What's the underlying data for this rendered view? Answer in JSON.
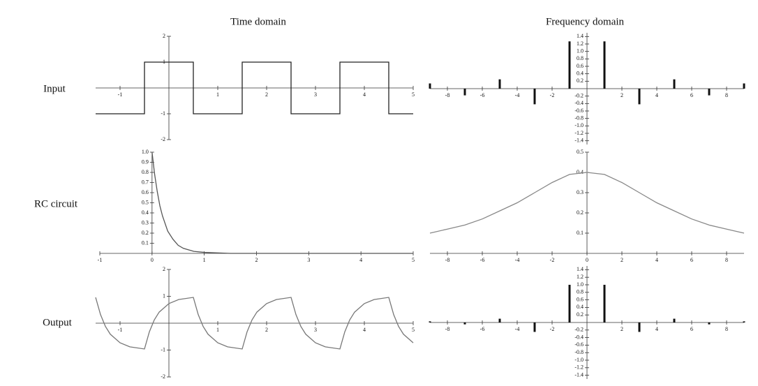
{
  "column_titles": [
    "Time domain",
    "Frequency domain"
  ],
  "row_labels": [
    "Input",
    "RC circuit",
    "Output"
  ],
  "chart_data": [
    {
      "type": "line",
      "color": "#222222",
      "x": [
        -1.5,
        -0.5,
        -0.5,
        0.5,
        0.5,
        1.5,
        1.5,
        2.5,
        2.5,
        3.5,
        3.5,
        4.5,
        4.5,
        5
      ],
      "values": [
        -1,
        -1,
        1,
        1,
        -1,
        -1,
        1,
        1,
        -1,
        -1,
        1,
        1,
        -1,
        -1
      ],
      "xlim": [
        -1.5,
        5
      ],
      "ylim": [
        -2,
        2
      ],
      "xticks": [
        -1,
        1,
        2,
        3,
        4,
        5
      ],
      "yticks": [
        2,
        1,
        -1,
        -2
      ]
    },
    {
      "type": "bar",
      "color": "#111111",
      "x": [
        -9,
        -7,
        -5,
        -3,
        -1,
        1,
        3,
        5,
        7,
        9
      ],
      "values": [
        0.14,
        -0.18,
        0.25,
        -0.42,
        1.27,
        1.27,
        -0.42,
        0.25,
        -0.18,
        0.14
      ],
      "xlim": [
        -9,
        9
      ],
      "ylim": [
        -1.5,
        1.5
      ],
      "xticks": [
        -8,
        -6,
        -4,
        -2,
        2,
        4,
        6,
        8
      ],
      "yticks": [
        1.4,
        1.2,
        {
          "value": 1,
          "label": "1.0"
        },
        0.8,
        0.6,
        0.4,
        0.2,
        -0.2,
        -0.4,
        -0.6,
        -0.8,
        {
          "value": -1,
          "label": "-1.0"
        },
        -1.2,
        -1.4
      ]
    },
    {
      "type": "line",
      "color": "#555555",
      "x": [
        0,
        0.05,
        0.1,
        0.15,
        0.2,
        0.3,
        0.4,
        0.5,
        0.6,
        0.8,
        1.0,
        1.5,
        5
      ],
      "values": [
        1,
        0.78,
        0.61,
        0.47,
        0.37,
        0.22,
        0.14,
        0.08,
        0.05,
        0.02,
        0.01,
        0,
        0
      ],
      "xlim": [
        -1,
        5
      ],
      "ylim": [
        0,
        1
      ],
      "xticks": [
        -1,
        0,
        1,
        2,
        3,
        4,
        5
      ],
      "yticks": [
        {
          "value": 1,
          "label": "1.0"
        },
        0.9,
        0.8,
        0.7,
        0.6,
        0.5,
        0.4,
        0.3,
        0.2,
        0.1
      ]
    },
    {
      "type": "line",
      "color": "#888888",
      "x": [
        -9,
        -8,
        -7,
        -6,
        -5,
        -4,
        -3,
        -2,
        -1,
        0,
        1,
        2,
        3,
        4,
        5,
        6,
        7,
        8,
        9
      ],
      "values": [
        0.1,
        0.12,
        0.14,
        0.17,
        0.21,
        0.25,
        0.3,
        0.35,
        0.39,
        0.4,
        0.39,
        0.35,
        0.3,
        0.25,
        0.21,
        0.17,
        0.14,
        0.12,
        0.1
      ],
      "xlim": [
        -9,
        9
      ],
      "ylim": [
        0,
        0.5
      ],
      "xticks": [
        -8,
        -6,
        -4,
        -2,
        0,
        2,
        4,
        6,
        8
      ],
      "yticks": [
        0.5,
        0.4,
        0.3,
        0.2,
        0.1
      ]
    },
    {
      "type": "line",
      "color": "#777777",
      "x": [
        -1.5,
        -1.4,
        -1.3,
        -1.2,
        -1.0,
        -0.8,
        -0.5,
        -0.4,
        -0.3,
        -0.2,
        0,
        0.2,
        0.5,
        0.6,
        0.7,
        0.8,
        1.0,
        1.2,
        1.5,
        1.6,
        1.7,
        1.8,
        2.0,
        2.2,
        2.5,
        2.6,
        2.7,
        2.8,
        3.0,
        3.2,
        3.5,
        3.6,
        3.7,
        3.8,
        4.0,
        4.2,
        4.5,
        4.6,
        4.7,
        4.8,
        5.0
      ],
      "values": [
        0.96,
        0.32,
        -0.12,
        -0.41,
        -0.73,
        -0.88,
        -0.96,
        -0.32,
        0.12,
        0.41,
        0.73,
        0.88,
        0.96,
        0.32,
        -0.12,
        -0.41,
        -0.73,
        -0.88,
        -0.96,
        -0.32,
        0.12,
        0.41,
        0.73,
        0.88,
        0.96,
        0.32,
        -0.12,
        -0.41,
        -0.73,
        -0.88,
        -0.96,
        -0.32,
        0.12,
        0.41,
        0.73,
        0.88,
        0.96,
        0.32,
        -0.12,
        -0.41,
        -0.73
      ],
      "xlim": [
        -1.5,
        5
      ],
      "ylim": [
        -2,
        2
      ],
      "xticks": [
        -1,
        1,
        2,
        3,
        4,
        5
      ],
      "yticks": [
        2,
        1,
        -1,
        -2
      ]
    },
    {
      "type": "bar",
      "color": "#111111",
      "x": [
        -9,
        -7,
        -5,
        -3,
        -1,
        1,
        3,
        5,
        7,
        9
      ],
      "values": [
        0.03,
        -0.05,
        0.1,
        -0.25,
        1.0,
        1.0,
        -0.25,
        0.1,
        -0.05,
        0.03
      ],
      "xlim": [
        -9,
        9
      ],
      "ylim": [
        -1.5,
        1.5
      ],
      "xticks": [
        -8,
        -6,
        -4,
        -2,
        2,
        4,
        6,
        8
      ],
      "yticks": [
        1.4,
        1.2,
        {
          "value": 1,
          "label": "1.0"
        },
        0.8,
        0.6,
        0.4,
        0.2,
        -0.2,
        -0.4,
        -0.6,
        -0.8,
        {
          "value": -1,
          "label": "-1.0"
        },
        -1.2,
        -1.4
      ]
    }
  ]
}
